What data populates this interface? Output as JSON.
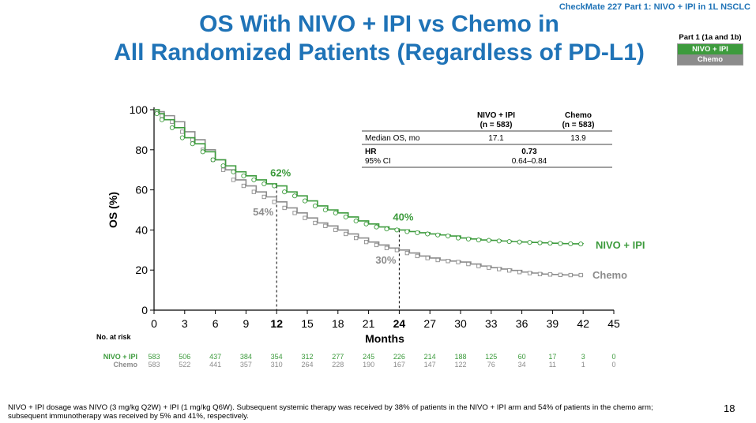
{
  "header": {
    "trial": "CheckMate 227 Part 1: NIVO + IPI in 1L NSCLC",
    "title_line1": "OS With NIVO + IPI vs Chemo in",
    "title_line2": "All Randomized Patients (Regardless of PD-L1)"
  },
  "legend": {
    "title": "Part 1 (1a and 1b)",
    "items": [
      {
        "label": "NIVO + IPI",
        "color": "#3d9b3d"
      },
      {
        "label": "Chemo",
        "color": "#8c8c8c"
      }
    ]
  },
  "stats_table": {
    "col1_header_line1": "NIVO + IPI",
    "col1_header_line2": "(n = 583)",
    "col2_header_line1": "Chemo",
    "col2_header_line2": "(n = 583)",
    "median_label": "Median OS, mo",
    "median_nivo": "17.1",
    "median_chemo": "13.9",
    "hr_label": "HR",
    "hr_value": "0.73",
    "ci_label": "95% CI",
    "ci_value": "0.64–0.84"
  },
  "chart_data": {
    "type": "line",
    "title": "",
    "xlabel": "Months",
    "ylabel": "OS (%)",
    "xlim": [
      0,
      45
    ],
    "ylim": [
      0,
      100
    ],
    "x_ticks": [
      0,
      3,
      6,
      9,
      12,
      15,
      18,
      21,
      24,
      27,
      30,
      33,
      36,
      39,
      42,
      45
    ],
    "x_ticks_bold": [
      12,
      24
    ],
    "y_ticks": [
      0,
      20,
      40,
      60,
      80,
      100
    ],
    "series": [
      {
        "name": "NIVO + IPI",
        "color": "#3d9b3d",
        "x": [
          0,
          0.5,
          1,
          2,
          3,
          4,
          5,
          6,
          7,
          8,
          9,
          10,
          11,
          12,
          13,
          14,
          15,
          16,
          17,
          18,
          19,
          20,
          21,
          22,
          23,
          24,
          25,
          26,
          27,
          28,
          29,
          30,
          31,
          32,
          33,
          34,
          35,
          36,
          37,
          38,
          39,
          40,
          41,
          42
        ],
        "y": [
          100,
          98,
          95,
          91,
          86,
          83,
          79,
          75,
          72,
          69,
          67,
          65,
          63,
          62,
          59,
          57,
          54.5,
          52,
          50,
          48.5,
          46.5,
          44.5,
          43,
          41.5,
          40.5,
          40,
          39.2,
          38.6,
          38,
          37.5,
          37,
          36,
          35.5,
          35,
          34.8,
          34.5,
          34.2,
          34,
          33.8,
          33.6,
          33.4,
          33.2,
          33.1,
          33
        ]
      },
      {
        "name": "Chemo",
        "color": "#8c8c8c",
        "x": [
          0,
          0.5,
          1,
          2,
          3,
          4,
          5,
          6,
          7,
          8,
          9,
          10,
          11,
          12,
          13,
          14,
          15,
          16,
          17,
          18,
          19,
          20,
          21,
          22,
          23,
          24,
          25,
          26,
          27,
          28,
          29,
          30,
          31,
          32,
          33,
          34,
          35,
          36,
          37,
          38,
          39,
          40,
          41,
          42
        ],
        "y": [
          100,
          99,
          97,
          94,
          89,
          85,
          80,
          75,
          70,
          65,
          62,
          59,
          56.5,
          54,
          51,
          48.5,
          46,
          43.5,
          42,
          40,
          38,
          36,
          34,
          32.5,
          31,
          30,
          28.5,
          27,
          26,
          25,
          24.5,
          24,
          23,
          22,
          21.2,
          20.5,
          19.8,
          19,
          18.5,
          18,
          17.8,
          17.6,
          17.5,
          17.5
        ]
      }
    ],
    "series_end_labels": [
      "NIVO + IPI",
      "Chemo"
    ],
    "annotations": [
      {
        "text": "62%",
        "x": 12,
        "y": 62,
        "series": "NIVO + IPI"
      },
      {
        "text": "54%",
        "x": 12,
        "y": 54,
        "series": "Chemo"
      },
      {
        "text": "40%",
        "x": 24,
        "y": 40,
        "series": "NIVO + IPI"
      },
      {
        "text": "30%",
        "x": 24,
        "y": 30,
        "series": "Chemo"
      }
    ],
    "reference_lines_x": [
      12,
      24
    ]
  },
  "risk_table": {
    "title": "No. at risk",
    "rows": [
      {
        "label": "NIVO + IPI",
        "color": "#3d9b3d",
        "values": [
          "583",
          "506",
          "437",
          "384",
          "354",
          "312",
          "277",
          "245",
          "226",
          "214",
          "188",
          "125",
          "60",
          "17",
          "3",
          "0"
        ]
      },
      {
        "label": "Chemo",
        "color": "#8c8c8c",
        "values": [
          "583",
          "522",
          "441",
          "357",
          "310",
          "264",
          "228",
          "190",
          "167",
          "147",
          "122",
          "76",
          "34",
          "11",
          "1",
          "0"
        ]
      }
    ]
  },
  "footnote": "NIVO + IPI dosage was NIVO (3 mg/kg Q2W) + IPI (1 mg/kg Q6W). Subsequent systemic therapy was received by 38% of patients in the NIVO + IPI arm and 54% of patients in the chemo arm; subsequent immunotherapy was received by 5% and 41%, respectively.",
  "page_number": "18"
}
